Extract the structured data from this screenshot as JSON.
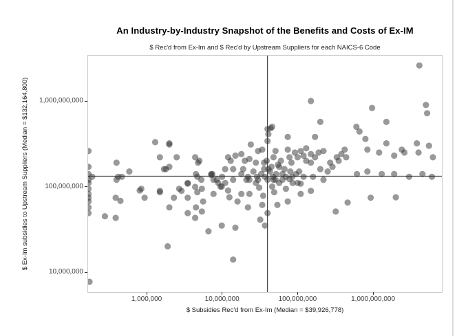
{
  "chart_data": {
    "type": "scatter",
    "title": "An Industry-by-Industry Snapshot of the Benefits and Costs of Ex-IM",
    "subtitle": "$ Rec'd from Ex-Im and $ Rec'd by Upstream Suppliers for each NAICS-6 Code",
    "xlabel": "$ Subsidies Rec'd from Ex-Im (Median = $39,926,778)",
    "ylabel": "$ Ex-Im subsidies to Upstream Suppliers (Median = $132,164,800)",
    "x_scale": "log10",
    "y_scale": "log10",
    "xlim": [
      168000,
      8300000000
    ],
    "ylim": [
      5900000,
      3300000000
    ],
    "grid": false,
    "legend": "none",
    "x_median": 39926778,
    "y_median": 132164800,
    "median_line_color": "#262626",
    "panel_border_color": "#c9c9c9",
    "point_color": "#333333",
    "point_opacity": 0.5,
    "point_radius": 4.6,
    "x_ticks": [
      {
        "value": 1000000,
        "label": "1,000,000"
      },
      {
        "value": 10000000,
        "label": "10,000,000"
      },
      {
        "value": 100000000,
        "label": "100,000,000"
      },
      {
        "value": 1000000000,
        "label": "1,000,000,000"
      }
    ],
    "y_ticks": [
      {
        "value": 1000000000,
        "label": "1,000,000,000"
      },
      {
        "value": 100000000,
        "label": "100,000,000"
      },
      {
        "value": 10000000,
        "label": "10,000,000"
      }
    ],
    "points": [
      [
        170000,
        260000000
      ],
      [
        170000,
        170000000
      ],
      [
        170000,
        140000000
      ],
      [
        170000,
        120000000
      ],
      [
        170000,
        110000000
      ],
      [
        170000,
        94000000
      ],
      [
        170000,
        82000000
      ],
      [
        170000,
        74000000
      ],
      [
        170000,
        67000000
      ],
      [
        170000,
        57000000
      ],
      [
        170000,
        49000000
      ],
      [
        175000,
        7700000
      ],
      [
        190000,
        130000000
      ],
      [
        1300000,
        330000000
      ],
      [
        2000000,
        310000000
      ],
      [
        1500000,
        220000000
      ],
      [
        2500000,
        220000000
      ],
      [
        4400000,
        220000000
      ],
      [
        5000000,
        200000000
      ],
      [
        400000,
        190000000
      ],
      [
        590000,
        150000000
      ],
      [
        420000,
        130000000
      ],
      [
        470000,
        130000000
      ],
      [
        2000000,
        320000000
      ],
      [
        1800000,
        160000000
      ],
      [
        4800000,
        190000000
      ],
      [
        4500000,
        140000000
      ],
      [
        5300000,
        120000000
      ],
      [
        3500000,
        110000000
      ],
      [
        7400000,
        140000000
      ],
      [
        8900000,
        110000000
      ],
      [
        9500000,
        100000000
      ],
      [
        12000000,
        220000000
      ],
      [
        13000000,
        200000000
      ],
      [
        11000000,
        160000000
      ],
      [
        14000000,
        160000000
      ],
      [
        15000000,
        230000000
      ],
      [
        18000000,
        240000000
      ],
      [
        20000000,
        200000000
      ],
      [
        19000000,
        160000000
      ],
      [
        24000000,
        310000000
      ],
      [
        30000000,
        260000000
      ],
      [
        23000000,
        210000000
      ],
      [
        28000000,
        190000000
      ],
      [
        23000000,
        120000000
      ],
      [
        28000000,
        110000000
      ],
      [
        36000000,
        190000000
      ],
      [
        37000000,
        130000000
      ],
      [
        40000000,
        120000000
      ],
      [
        41000000,
        410000000
      ],
      [
        40000000,
        340000000
      ],
      [
        44000000,
        480000000
      ],
      [
        4700000,
        130000000
      ],
      [
        7200000,
        140000000
      ],
      [
        7700000,
        120000000
      ],
      [
        10000000,
        130000000
      ],
      [
        11000000,
        110000000
      ],
      [
        14000000,
        120000000
      ],
      [
        18000000,
        140000000
      ],
      [
        22000000,
        130000000
      ],
      [
        400000,
        120000000
      ],
      [
        1700000,
        160000000
      ],
      [
        2000000,
        170000000
      ],
      [
        850000,
        94000000
      ],
      [
        1500000,
        89000000
      ],
      [
        2700000,
        94000000
      ],
      [
        810000,
        90000000
      ],
      [
        940000,
        74000000
      ],
      [
        1500000,
        86000000
      ],
      [
        2000000,
        57000000
      ],
      [
        2300000,
        74000000
      ],
      [
        2900000,
        89000000
      ],
      [
        3500000,
        108000000
      ],
      [
        3500000,
        74000000
      ],
      [
        4400000,
        99000000
      ],
      [
        4700000,
        86000000
      ],
      [
        4500000,
        57000000
      ],
      [
        5400000,
        94000000
      ],
      [
        5600000,
        67000000
      ],
      [
        3500000,
        49000000
      ],
      [
        4400000,
        43000000
      ],
      [
        5400000,
        51000000
      ],
      [
        280000,
        45000000
      ],
      [
        390000,
        43000000
      ],
      [
        390000,
        74000000
      ],
      [
        450000,
        68000000
      ],
      [
        1900000,
        20000000
      ],
      [
        7200000,
        136000000
      ],
      [
        8500000,
        120000000
      ],
      [
        9900000,
        100000000
      ],
      [
        7700000,
        82000000
      ],
      [
        12000000,
        90000000
      ],
      [
        12500000,
        75000000
      ],
      [
        18000000,
        82000000
      ],
      [
        16000000,
        67000000
      ],
      [
        21000000,
        120000000
      ],
      [
        23000000,
        82000000
      ],
      [
        22000000,
        57000000
      ],
      [
        30000000,
        120000000
      ],
      [
        31000000,
        97000000
      ],
      [
        35000000,
        78000000
      ],
      [
        34000000,
        61000000
      ],
      [
        40000000,
        49000000
      ],
      [
        37000000,
        35000000
      ],
      [
        32000000,
        41000000
      ],
      [
        46000000,
        100000000
      ],
      [
        49000000,
        86000000
      ],
      [
        51000000,
        120000000
      ],
      [
        54000000,
        61000000
      ],
      [
        70000000,
        94000000
      ],
      [
        74000000,
        67000000
      ],
      [
        78000000,
        122000000
      ],
      [
        100000000,
        110000000
      ],
      [
        110000000,
        82000000
      ],
      [
        150000000,
        89000000
      ],
      [
        9900000,
        35000000
      ],
      [
        15000000,
        33000000
      ],
      [
        6600000,
        30000000
      ],
      [
        14000000,
        14000000
      ],
      [
        320000000,
        51000000
      ],
      [
        460000000,
        65000000
      ],
      [
        930000000,
        74000000
      ],
      [
        2000000000,
        75000000
      ],
      [
        40000000,
        470000000
      ],
      [
        46000000,
        500000000
      ],
      [
        74000000,
        380000000
      ],
      [
        170000000,
        380000000
      ],
      [
        39000000,
        200000000
      ],
      [
        41000000,
        160000000
      ],
      [
        48000000,
        220000000
      ],
      [
        51000000,
        260000000
      ],
      [
        57000000,
        170000000
      ],
      [
        60000000,
        200000000
      ],
      [
        67000000,
        160000000
      ],
      [
        74000000,
        270000000
      ],
      [
        78000000,
        220000000
      ],
      [
        83000000,
        190000000
      ],
      [
        92000000,
        250000000
      ],
      [
        100000000,
        220000000
      ],
      [
        110000000,
        260000000
      ],
      [
        120000000,
        230000000
      ],
      [
        130000000,
        200000000
      ],
      [
        130000000,
        280000000
      ],
      [
        150000000,
        240000000
      ],
      [
        150000000,
        190000000
      ],
      [
        170000000,
        220000000
      ],
      [
        190000000,
        250000000
      ],
      [
        200000000,
        160000000
      ],
      [
        220000000,
        260000000
      ],
      [
        250000000,
        150000000
      ],
      [
        270000000,
        190000000
      ],
      [
        290000000,
        170000000
      ],
      [
        330000000,
        220000000
      ],
      [
        350000000,
        200000000
      ],
      [
        380000000,
        240000000
      ],
      [
        420000000,
        270000000
      ],
      [
        440000000,
        220000000
      ],
      [
        160000000,
        130000000
      ],
      [
        120000000,
        130000000
      ],
      [
        70000000,
        130000000
      ],
      [
        48000000,
        120000000
      ],
      [
        57000000,
        110000000
      ],
      [
        86000000,
        110000000
      ],
      [
        110000000,
        108000000
      ],
      [
        220000000,
        120000000
      ],
      [
        4100000000,
        2600000000
      ],
      [
        150000000,
        1000000000
      ],
      [
        970000000,
        830000000
      ],
      [
        5000000000,
        900000000
      ],
      [
        5200000000,
        720000000
      ],
      [
        200000000,
        570000000
      ],
      [
        1500000000,
        570000000
      ],
      [
        600000000,
        500000000
      ],
      [
        660000000,
        440000000
      ],
      [
        790000000,
        360000000
      ],
      [
        1500000000,
        320000000
      ],
      [
        2400000000,
        270000000
      ],
      [
        3800000000,
        320000000
      ],
      [
        840000000,
        270000000
      ],
      [
        1200000000,
        250000000
      ],
      [
        1900000000,
        230000000
      ],
      [
        2600000000,
        250000000
      ],
      [
        4000000000,
        250000000
      ],
      [
        5500000000,
        300000000
      ],
      [
        6200000000,
        220000000
      ],
      [
        610000000,
        140000000
      ],
      [
        840000000,
        150000000
      ],
      [
        1300000000,
        140000000
      ],
      [
        1900000000,
        140000000
      ],
      [
        3000000000,
        130000000
      ],
      [
        4500000000,
        140000000
      ],
      [
        6000000000,
        130000000
      ],
      [
        34000000,
        270000000
      ],
      [
        26000000,
        150000000
      ],
      [
        33000000,
        140000000
      ],
      [
        43000000,
        150000000
      ],
      [
        52000000,
        140000000
      ],
      [
        63000000,
        140000000
      ],
      [
        80000000,
        150000000
      ],
      [
        95000000,
        140000000
      ],
      [
        63000000,
        120000000
      ],
      [
        45000000,
        170000000
      ],
      [
        55000000,
        180000000
      ],
      [
        36000000,
        160000000
      ],
      [
        29000000,
        130000000
      ],
      [
        47000000,
        130000000
      ],
      [
        85000000,
        130000000
      ],
      [
        105000000,
        150000000
      ]
    ]
  }
}
